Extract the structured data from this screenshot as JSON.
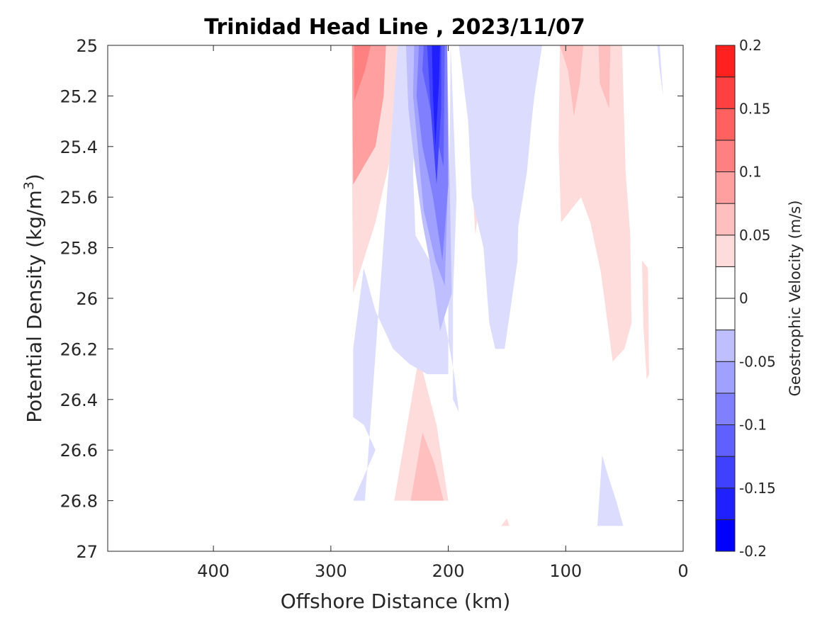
{
  "chart_data": {
    "type": "contour",
    "title": "Trinidad Head Line , 2023/11/07",
    "xlabel": "Offshore Distance (km)",
    "ylabel_main": "Potential Density (kg/m",
    "ylabel_sup": "3",
    "ylabel_close": ")",
    "xlim": [
      490,
      0
    ],
    "ylim": [
      25,
      27
    ],
    "x_reversed": true,
    "y_reversed": true,
    "xticks": [
      400,
      300,
      200,
      100,
      0
    ],
    "xtick_labels": [
      "400",
      "300",
      "200",
      "100",
      "0"
    ],
    "yticks": [
      25,
      25.2,
      25.4,
      25.6,
      25.8,
      26,
      26.2,
      26.4,
      26.6,
      26.8,
      27
    ],
    "ytick_labels": [
      "25",
      "25.2",
      "25.4",
      "25.6",
      "25.8",
      "26",
      "26.2",
      "26.4",
      "26.6",
      "26.8",
      "27"
    ],
    "colorbar": {
      "label": "Geostrophic Velocity (m/s)",
      "min": -0.2,
      "max": 0.2,
      "levels": [
        -0.2,
        -0.175,
        -0.15,
        -0.125,
        -0.1,
        -0.075,
        -0.05,
        -0.025,
        0,
        0.025,
        0.05,
        0.075,
        0.1,
        0.125,
        0.15,
        0.175,
        0.2
      ],
      "colors": [
        "#0000ff",
        "#2020ff",
        "#4040ff",
        "#6060ff",
        "#8080ff",
        "#a0a0ff",
        "#bfbfff",
        "#dcdcff",
        "#ffffff",
        "#ffffff",
        "#ffdcdc",
        "#ffbfbf",
        "#ff9f9f",
        "#ff8080",
        "#ff6060",
        "#ff4040",
        "#ff2020",
        "#ff0000"
      ],
      "ticks": [
        -0.2,
        -0.15,
        -0.1,
        -0.05,
        0,
        0.05,
        0.1,
        0.15,
        0.2
      ],
      "tick_labels": [
        "-0.2",
        "-0.15",
        "-0.1",
        "-0.05",
        "0",
        "0.05",
        "0.1",
        "0.15",
        "0.2"
      ]
    },
    "regions": [
      {
        "level": 0.025,
        "points": [
          [
            282,
            25
          ],
          [
            243,
            25
          ],
          [
            247,
            25.4
          ],
          [
            262,
            25.7
          ],
          [
            281,
            25.98
          ],
          [
            282,
            25.5
          ]
        ]
      },
      {
        "level": 0.075,
        "points": [
          [
            282,
            25
          ],
          [
            253,
            25
          ],
          [
            255,
            25.2
          ],
          [
            262,
            25.4
          ],
          [
            281,
            25.55
          ]
        ]
      },
      {
        "level": 0.1,
        "points": [
          [
            280,
            25
          ],
          [
            266,
            25
          ],
          [
            271,
            25.1
          ],
          [
            280,
            25.22
          ]
        ]
      },
      {
        "level": 0.025,
        "points": [
          [
            183,
            25
          ],
          [
            167,
            25
          ],
          [
            170,
            25.5
          ],
          [
            177,
            25.75
          ],
          [
            180,
            25.5
          ]
        ]
      },
      {
        "level": 0.05,
        "points": [
          [
            183,
            25
          ],
          [
            172,
            25
          ],
          [
            178,
            25.38
          ],
          [
            181,
            25.2
          ]
        ]
      },
      {
        "level": 0.025,
        "points": [
          [
            105,
            25
          ],
          [
            52,
            25
          ],
          [
            49,
            25.5
          ],
          [
            45,
            25.75
          ],
          [
            44,
            26.1
          ],
          [
            50,
            26.2
          ],
          [
            60,
            26.25
          ],
          [
            70,
            25.9
          ],
          [
            79,
            25.7
          ],
          [
            87,
            25.6
          ],
          [
            104,
            25.7
          ],
          [
            106,
            25.4
          ]
        ]
      },
      {
        "level": 0.05,
        "points": [
          [
            105,
            25
          ],
          [
            85,
            25
          ],
          [
            88,
            25.15
          ],
          [
            93,
            25.28
          ],
          [
            98,
            25.1
          ]
        ]
      },
      {
        "level": 0.05,
        "points": [
          [
            72,
            25
          ],
          [
            62,
            25
          ],
          [
            63,
            25.25
          ],
          [
            71,
            25.15
          ]
        ]
      },
      {
        "level": 0.025,
        "points": [
          [
            35,
            25.85
          ],
          [
            30,
            25.88
          ],
          [
            29,
            26.3
          ],
          [
            31,
            26.32
          ],
          [
            34,
            26.1
          ]
        ]
      },
      {
        "level": 0.025,
        "points": [
          [
            225,
            26.23
          ],
          [
            246,
            26.8
          ],
          [
            200,
            26.8
          ],
          [
            210,
            26.5
          ]
        ]
      },
      {
        "level": 0.05,
        "points": [
          [
            222,
            26.53
          ],
          [
            232,
            26.8
          ],
          [
            204,
            26.8
          ],
          [
            212,
            26.65
          ]
        ]
      },
      {
        "level": 0.025,
        "points": [
          [
            155,
            26.9
          ],
          [
            150,
            26.87
          ],
          [
            148,
            26.9
          ]
        ]
      },
      {
        "level": -0.025,
        "points": [
          [
            243,
            25
          ],
          [
            225,
            25
          ],
          [
            230,
            25.5
          ],
          [
            228,
            25.75
          ],
          [
            210,
            25.9
          ],
          [
            195,
            26.3
          ],
          [
            191,
            26.45
          ],
          [
            196,
            26.4
          ],
          [
            196,
            26.0
          ],
          [
            193,
            25.6
          ],
          [
            198,
            25
          ],
          [
            191,
            25
          ],
          [
            183,
            25.3
          ],
          [
            180,
            25.6
          ],
          [
            170,
            25.8
          ],
          [
            165,
            26.1
          ],
          [
            160,
            26.2
          ],
          [
            152,
            26.2
          ],
          [
            141,
            25.85
          ],
          [
            140,
            25.6
          ],
          [
            130,
            25.3
          ],
          [
            120,
            25
          ],
          [
            162,
            25
          ],
          [
            163,
            25.5
          ],
          [
            152,
            25.75
          ],
          [
            145,
            25.85
          ],
          [
            133,
            25.5
          ],
          [
            129,
            25.3
          ],
          [
            122,
            25
          ],
          [
            198,
            25
          ],
          [
            200,
            26.0
          ],
          [
            200,
            26.3
          ],
          [
            218,
            26.3
          ],
          [
            233,
            26.26
          ],
          [
            247,
            26.2
          ],
          [
            262,
            26.05
          ],
          [
            272,
            25.88
          ],
          [
            281,
            26.2
          ],
          [
            281,
            26.47
          ],
          [
            272,
            26.5
          ],
          [
            262,
            26.6
          ],
          [
            281,
            26.8
          ],
          [
            271,
            26.8
          ]
        ]
      },
      {
        "level": -0.05,
        "points": [
          [
            236,
            25
          ],
          [
            201,
            25
          ],
          [
            199,
            25.5
          ],
          [
            197,
            25.98
          ],
          [
            207,
            26.13
          ],
          [
            212,
            25.95
          ],
          [
            222,
            25.7
          ],
          [
            228,
            25.5
          ],
          [
            234,
            25.25
          ]
        ]
      },
      {
        "level": -0.075,
        "points": [
          [
            229,
            25
          ],
          [
            201,
            25
          ],
          [
            200,
            25.5
          ],
          [
            203,
            25.95
          ],
          [
            211,
            25.85
          ],
          [
            221,
            25.65
          ],
          [
            226,
            25.4
          ],
          [
            230,
            25.2
          ]
        ]
      },
      {
        "level": -0.1,
        "points": [
          [
            225,
            25
          ],
          [
            201,
            25
          ],
          [
            200,
            25.55
          ],
          [
            205,
            25.85
          ],
          [
            213,
            25.6
          ],
          [
            222,
            25.4
          ],
          [
            227,
            25.2
          ]
        ]
      },
      {
        "level": -0.125,
        "points": [
          [
            221,
            25
          ],
          [
            203,
            25
          ],
          [
            204,
            25.48
          ],
          [
            213,
            25.3
          ],
          [
            222,
            25.1
          ]
        ]
      },
      {
        "level": -0.15,
        "points": [
          [
            218,
            25
          ],
          [
            206,
            25
          ],
          [
            206,
            25.25
          ],
          [
            210,
            25.55
          ],
          [
            215,
            25.25
          ]
        ]
      },
      {
        "level": -0.175,
        "points": [
          [
            214,
            25
          ],
          [
            207,
            25
          ],
          [
            208,
            25.15
          ],
          [
            211,
            25.4
          ],
          [
            213,
            25.2
          ]
        ]
      },
      {
        "level": -0.025,
        "points": [
          [
            22,
            25
          ],
          [
            20,
            25
          ],
          [
            17,
            25.2
          ],
          [
            20,
            25.1
          ]
        ]
      },
      {
        "level": -0.025,
        "points": [
          [
            69,
            26.62
          ],
          [
            73,
            26.9
          ],
          [
            51,
            26.9
          ],
          [
            57,
            26.8
          ],
          [
            64,
            26.7
          ]
        ]
      }
    ]
  }
}
